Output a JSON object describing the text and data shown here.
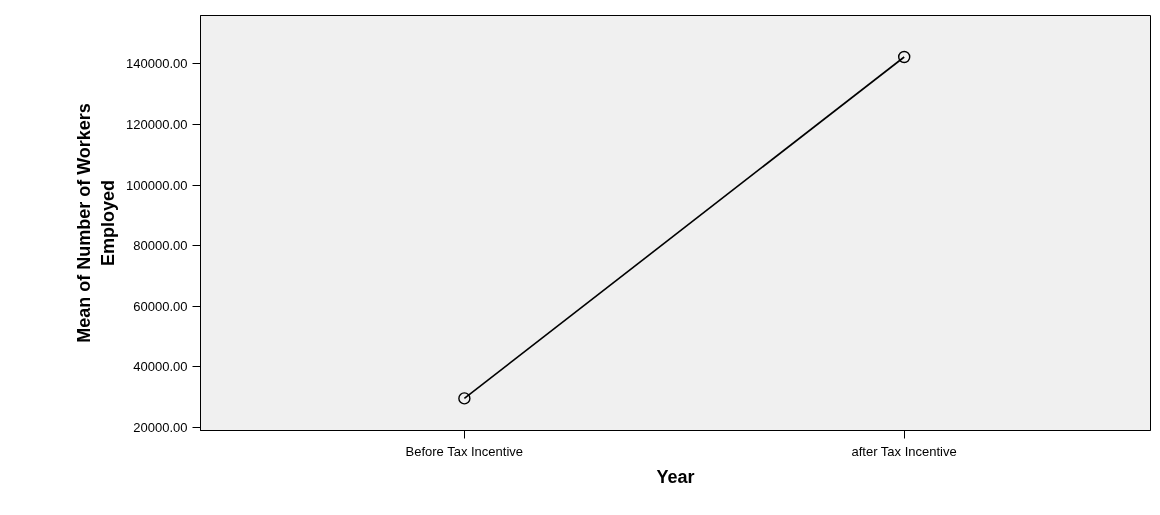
{
  "chart_data": {
    "type": "line",
    "xlabel": "Year",
    "ylabel": "Mean of Number of Workers Employed",
    "categories": [
      "Before Tax Incentive",
      "after Tax Incentive"
    ],
    "series": [
      {
        "color": "#000000",
        "values": [
          29600,
          142300
        ]
      }
    ],
    "ylim": [
      19000,
      156000
    ],
    "yticks": [
      {
        "value": 20000,
        "label": "20000.00"
      },
      {
        "value": 40000,
        "label": "40000.00"
      },
      {
        "value": 60000,
        "label": "60000.00"
      },
      {
        "value": 80000,
        "label": "80000.00"
      },
      {
        "value": 100000,
        "label": "100000.00"
      },
      {
        "value": 120000,
        "label": "120000.00"
      },
      {
        "value": 140000,
        "label": "140000.00"
      }
    ],
    "grid": false,
    "marker": "circle",
    "line_style": "solid"
  }
}
